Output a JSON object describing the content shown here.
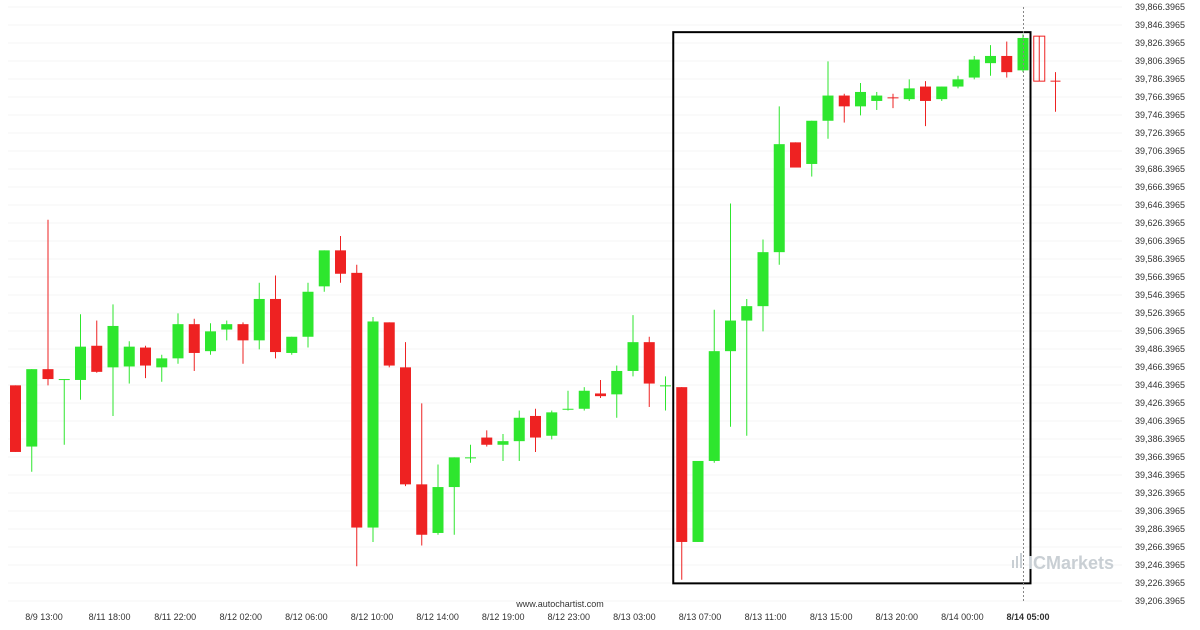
{
  "chart_data": {
    "type": "candlestick",
    "y_axis": {
      "min": 39206.3965,
      "max": 39866.3965,
      "labels": [
        "39,866.3965",
        "39,846.3965",
        "39,826.3965",
        "39,806.3965",
        "39,786.3965",
        "39,766.3965",
        "39,746.3965",
        "39,726.3965",
        "39,706.3965",
        "39,686.3965",
        "39,666.3965",
        "39,646.3965",
        "39,626.3965",
        "39,606.3965",
        "39,586.3965",
        "39,566.3965",
        "39,546.3965",
        "39,526.3965",
        "39,506.3965",
        "39,486.3965",
        "39,466.3965",
        "39,446.3965",
        "39,426.3965",
        "39,406.3965",
        "39,386.3965",
        "39,366.3965",
        "39,346.3965",
        "39,326.3965",
        "39,306.3965",
        "39,286.3965",
        "39,266.3965",
        "39,246.3965",
        "39,226.3965",
        "39,206.3965"
      ]
    },
    "x_axis": {
      "labels": [
        "8/9 13:00",
        "8/11 18:00",
        "8/11 22:00",
        "8/12 02:00",
        "8/12 06:00",
        "8/12 10:00",
        "8/12 14:00",
        "8/12 19:00",
        "8/12 23:00",
        "8/13 03:00",
        "8/13 07:00",
        "8/13 11:00",
        "8/13 15:00",
        "8/13 20:00",
        "8/14 00:00",
        "8/14 05:00"
      ],
      "highlighted_label": "8/14 05:00"
    },
    "colors": {
      "up": "#2ee62e",
      "down": "#ee2222",
      "projection": "#ee2222",
      "box": "#000000"
    },
    "candles": [
      {
        "o": 39446,
        "h": 39446,
        "l": 39372,
        "c": 39372
      },
      {
        "o": 39378,
        "h": 39464,
        "l": 39350,
        "c": 39464
      },
      {
        "o": 39464,
        "h": 39630,
        "l": 39446,
        "c": 39453
      },
      {
        "o": 39453,
        "h": 39453,
        "l": 39380,
        "c": 39453
      },
      {
        "o": 39452,
        "h": 39525,
        "l": 39430,
        "c": 39489
      },
      {
        "o": 39490,
        "h": 39518,
        "l": 39460,
        "c": 39461
      },
      {
        "o": 39466,
        "h": 39536,
        "l": 39412,
        "c": 39512
      },
      {
        "o": 39467,
        "h": 39495,
        "l": 39448,
        "c": 39489
      },
      {
        "o": 39488,
        "h": 39490,
        "l": 39454,
        "c": 39468
      },
      {
        "o": 39466,
        "h": 39480,
        "l": 39450,
        "c": 39476
      },
      {
        "o": 39476,
        "h": 39526,
        "l": 39470,
        "c": 39514
      },
      {
        "o": 39514,
        "h": 39520,
        "l": 39462,
        "c": 39482
      },
      {
        "o": 39484,
        "h": 39515,
        "l": 39480,
        "c": 39506
      },
      {
        "o": 39508,
        "h": 39518,
        "l": 39496,
        "c": 39514
      },
      {
        "o": 39514,
        "h": 39516,
        "l": 39470,
        "c": 39496
      },
      {
        "o": 39496,
        "h": 39560,
        "l": 39486,
        "c": 39542
      },
      {
        "o": 39542,
        "h": 39568,
        "l": 39476,
        "c": 39483
      },
      {
        "o": 39482,
        "h": 39500,
        "l": 39480,
        "c": 39500
      },
      {
        "o": 39500,
        "h": 39560,
        "l": 39488,
        "c": 39550
      },
      {
        "o": 39556,
        "h": 39596,
        "l": 39550,
        "c": 39596
      },
      {
        "o": 39596,
        "h": 39612,
        "l": 39560,
        "c": 39570
      },
      {
        "o": 39571,
        "h": 39580,
        "l": 39245,
        "c": 39288
      },
      {
        "o": 39288,
        "h": 39522,
        "l": 39272,
        "c": 39517
      },
      {
        "o": 39516,
        "h": 39516,
        "l": 39466,
        "c": 39468
      },
      {
        "o": 39466,
        "h": 39494,
        "l": 39334,
        "c": 39336
      },
      {
        "o": 39336,
        "h": 39426,
        "l": 39268,
        "c": 39280
      },
      {
        "o": 39282,
        "h": 39358,
        "l": 39280,
        "c": 39333
      },
      {
        "o": 39333,
        "h": 39366,
        "l": 39280,
        "c": 39366
      },
      {
        "o": 39366,
        "h": 39380,
        "l": 39360,
        "c": 39366
      },
      {
        "o": 39388,
        "h": 39396,
        "l": 39378,
        "c": 39380
      },
      {
        "o": 39380,
        "h": 39392,
        "l": 39362,
        "c": 39384
      },
      {
        "o": 39384,
        "h": 39418,
        "l": 39362,
        "c": 39410
      },
      {
        "o": 39412,
        "h": 39420,
        "l": 39372,
        "c": 39388
      },
      {
        "o": 39390,
        "h": 39418,
        "l": 39386,
        "c": 39416
      },
      {
        "o": 39420,
        "h": 39440,
        "l": 39418,
        "c": 39420
      },
      {
        "o": 39420,
        "h": 39444,
        "l": 39418,
        "c": 39440
      },
      {
        "o": 39437,
        "h": 39452,
        "l": 39432,
        "c": 39434
      },
      {
        "o": 39436,
        "h": 39468,
        "l": 39410,
        "c": 39462
      },
      {
        "o": 39462,
        "h": 39524,
        "l": 39456,
        "c": 39494
      },
      {
        "o": 39494,
        "h": 39500,
        "l": 39422,
        "c": 39448
      },
      {
        "o": 39446,
        "h": 39456,
        "l": 39418,
        "c": 39446
      },
      {
        "o": 39444,
        "h": 39444,
        "l": 39230,
        "c": 39272
      },
      {
        "o": 39272,
        "h": 39362,
        "l": 39272,
        "c": 39362
      },
      {
        "o": 39362,
        "h": 39530,
        "l": 39360,
        "c": 39484
      },
      {
        "o": 39484,
        "h": 39648,
        "l": 39400,
        "c": 39518
      },
      {
        "o": 39518,
        "h": 39542,
        "l": 39390,
        "c": 39534
      },
      {
        "o": 39534,
        "h": 39608,
        "l": 39506,
        "c": 39594
      },
      {
        "o": 39594,
        "h": 39756,
        "l": 39580,
        "c": 39714
      },
      {
        "o": 39716,
        "h": 39716,
        "l": 39690,
        "c": 39688
      },
      {
        "o": 39692,
        "h": 39740,
        "l": 39678,
        "c": 39740
      },
      {
        "o": 39740,
        "h": 39806,
        "l": 39720,
        "c": 39768
      },
      {
        "o": 39768,
        "h": 39770,
        "l": 39738,
        "c": 39756
      },
      {
        "o": 39756,
        "h": 39782,
        "l": 39746,
        "c": 39772
      },
      {
        "o": 39762,
        "h": 39772,
        "l": 39752,
        "c": 39768
      },
      {
        "o": 39766,
        "h": 39770,
        "l": 39754,
        "c": 39765
      },
      {
        "o": 39764,
        "h": 39786,
        "l": 39762,
        "c": 39776
      },
      {
        "o": 39778,
        "h": 39784,
        "l": 39734,
        "c": 39762
      },
      {
        "o": 39764,
        "h": 39778,
        "l": 39762,
        "c": 39778
      },
      {
        "o": 39778,
        "h": 39790,
        "l": 39776,
        "c": 39786
      },
      {
        "o": 39788,
        "h": 39812,
        "l": 39786,
        "c": 39808
      },
      {
        "o": 39804,
        "h": 39824,
        "l": 39790,
        "c": 39812
      },
      {
        "o": 39812,
        "h": 39828,
        "l": 39788,
        "c": 39794
      },
      {
        "o": 39796,
        "h": 39836,
        "l": 39794,
        "c": 39832
      }
    ],
    "projection": [
      {
        "o": 39834,
        "h": 39834,
        "l": 39784,
        "c": 39784
      },
      {
        "o": 39784,
        "h": 39794,
        "l": 39750,
        "c": 39784
      }
    ],
    "pattern_box": {
      "start_index": 41,
      "end_index": 62,
      "high": 39834,
      "low": 39226
    },
    "vertical_marker_index": 62
  },
  "watermark": {
    "url": "www.autochartist.com",
    "brand": "ICMarkets"
  }
}
